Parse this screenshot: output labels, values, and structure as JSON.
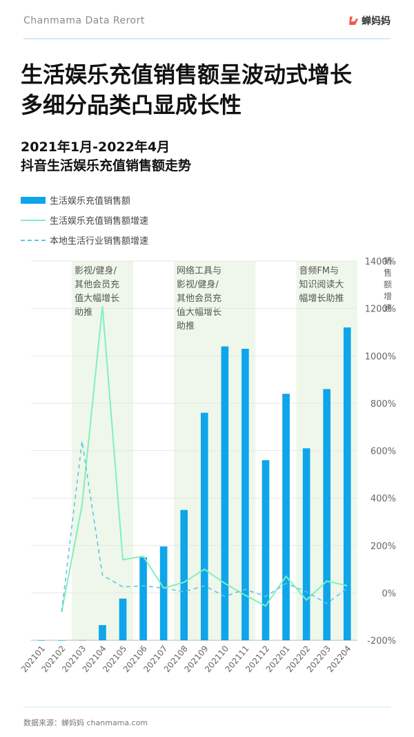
{
  "header": {
    "brand_text": "Chanmama Data Rerort",
    "logo_text": "蝉妈妈",
    "headline_line1": "生活娱乐充值销售额呈波动式增长",
    "headline_line2": "多细分品类凸显成长性",
    "subhead_line1": "2021年1月-2022年4月",
    "subhead_line2": "抖音生活娱乐充值销售额走势"
  },
  "legend": {
    "bar": "生活娱乐充值销售额",
    "line": "生活娱乐充值销售额增速",
    "dash": "本地生活行业销售额增速"
  },
  "footer": {
    "source": "数据来源：蝉妈妈 chanmama.com"
  },
  "colors": {
    "bar": "#0ea5ea",
    "line": "#7ff0bd",
    "dash": "#5fc6df",
    "band": "#eef7ea",
    "accent": "#f05a4a"
  },
  "chart_data": {
    "type": "bar",
    "categories": [
      "202101",
      "202102",
      "202103",
      "202104",
      "202105",
      "202106",
      "202107",
      "202108",
      "202109",
      "202110",
      "202111",
      "202112",
      "202201",
      "202202",
      "202203",
      "202204"
    ],
    "series": [
      {
        "name": "生活娱乐充值销售额",
        "kind": "bar",
        "axis": "left",
        "values": [
          0,
          0,
          0.05,
          3.2,
          8.8,
          17.5,
          19.8,
          27.5,
          48,
          62,
          61.5,
          38,
          52,
          40.5,
          53,
          66
        ]
      },
      {
        "name": "生活娱乐充值销售额增速",
        "kind": "line",
        "axis": "right",
        "values": [
          null,
          -80,
          370,
          1210,
          140,
          155,
          20,
          45,
          100,
          40,
          -10,
          -55,
          70,
          -30,
          50,
          30
        ]
      },
      {
        "name": "本地生活行业销售额增速",
        "kind": "dash",
        "axis": "right",
        "values": [
          null,
          -80,
          640,
          75,
          25,
          30,
          20,
          5,
          30,
          -15,
          15,
          -15,
          40,
          5,
          -45,
          20
        ]
      }
    ],
    "y_left_range": [
      0,
      80
    ],
    "y_right_range": [
      -200,
      1400
    ],
    "y_right_ticks": [
      "1400%",
      "1200%",
      "1000%",
      "800%",
      "600%",
      "400%",
      "200%",
      "0%",
      "-200%"
    ],
    "y_right_label": "销售额增速",
    "highlight_bands": [
      {
        "from": 2,
        "to": 4,
        "text": [
          "影视/健身/",
          "其他会员充",
          "值大幅增长",
          "助推"
        ]
      },
      {
        "from": 7,
        "to": 10,
        "text": [
          "网络工具与",
          "影视/健身/",
          "其他会员充",
          "值大幅增长",
          "助推"
        ]
      },
      {
        "from": 13,
        "to": 15,
        "text": [
          "音频FM与",
          "知识阅读大",
          "幅增长助推"
        ]
      }
    ],
    "grid": true,
    "legend_position": "top-left"
  }
}
